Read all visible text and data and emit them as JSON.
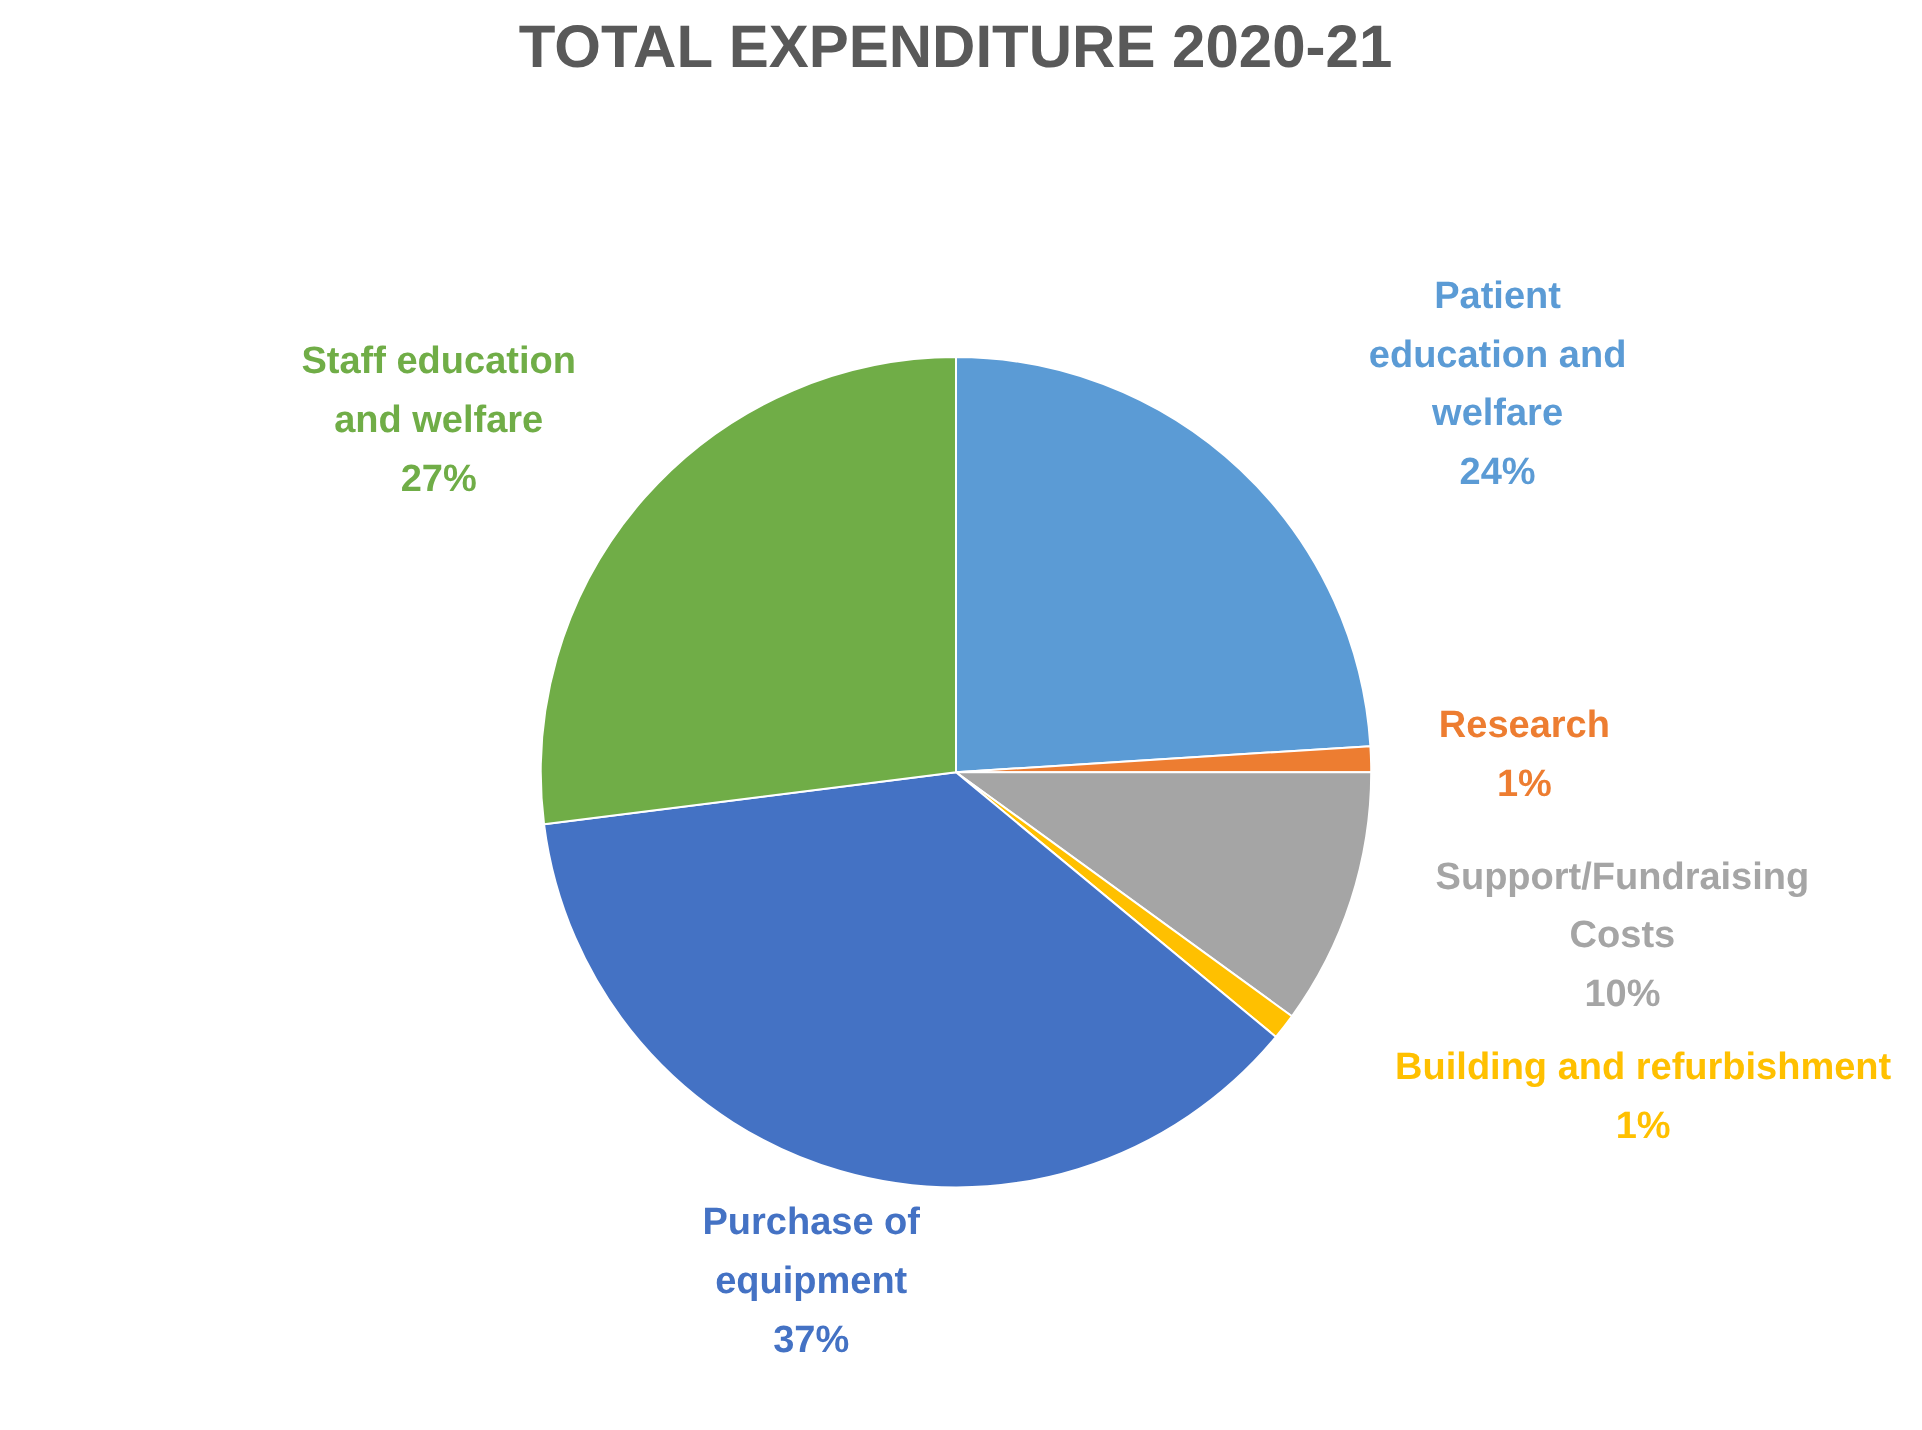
{
  "chart_data": {
    "type": "pie",
    "title": "TOTAL EXPENDITURE 2020-21",
    "categories": [
      "Patient\neducation and\nwelfare",
      "Research",
      "Support/Fundraising\nCosts",
      "Building and refurbishment",
      "Purchase of\nequipment",
      "Staff education\nand welfare"
    ],
    "values": [
      24,
      1,
      10,
      1,
      37,
      27
    ],
    "colors": [
      "#5b9bd5",
      "#ed7d31",
      "#a5a5a5",
      "#ffc000",
      "#4472c4",
      "#70ad47"
    ],
    "value_labels": [
      "24%",
      "1%",
      "10%",
      "1%",
      "37%",
      "27%"
    ]
  }
}
